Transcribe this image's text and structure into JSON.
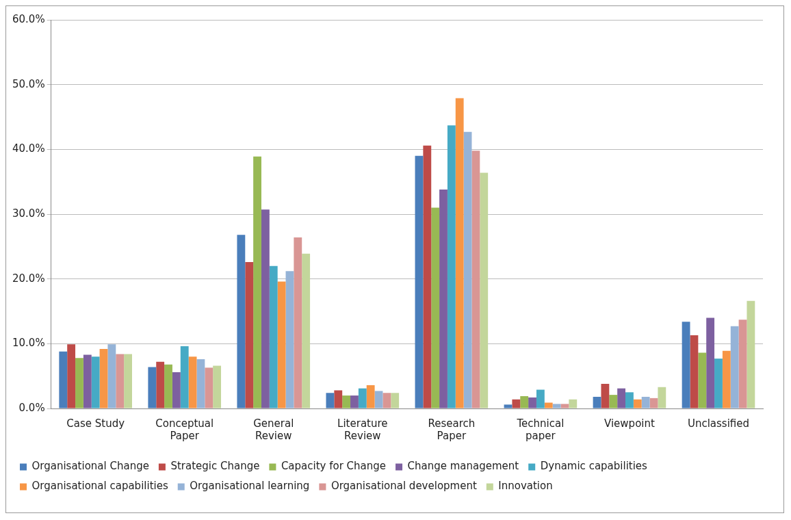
{
  "chart_data": {
    "type": "bar",
    "categories": [
      "Case Study",
      "Conceptual Paper",
      "General Review",
      "Literature Review",
      "Research Paper",
      "Technical paper",
      "Viewpoint",
      "Unclassified"
    ],
    "series": [
      {
        "name": "Organisational Change",
        "color": "#4a7ebb",
        "values": [
          8.8,
          6.4,
          26.8,
          2.4,
          39.0,
          0.6,
          1.8,
          13.4
        ]
      },
      {
        "name": "Strategic Change",
        "color": "#be4b48",
        "values": [
          9.9,
          7.2,
          22.6,
          2.8,
          40.6,
          1.4,
          3.8,
          11.3
        ]
      },
      {
        "name": "Capacity for Change",
        "color": "#98b954",
        "values": [
          7.8,
          6.8,
          38.9,
          2.0,
          31.0,
          1.9,
          2.1,
          8.6
        ]
      },
      {
        "name": "Change management",
        "color": "#7d60a0",
        "values": [
          8.3,
          5.6,
          30.7,
          2.0,
          33.8,
          1.7,
          3.1,
          14.0
        ]
      },
      {
        "name": "Dynamic capabilities",
        "color": "#46aac5",
        "values": [
          8.0,
          9.6,
          22.0,
          3.1,
          43.7,
          2.9,
          2.5,
          7.7
        ]
      },
      {
        "name": "Organisational capabilities",
        "color": "#f79646",
        "values": [
          9.2,
          8.0,
          19.6,
          3.6,
          47.9,
          0.9,
          1.4,
          8.9
        ]
      },
      {
        "name": "Organisational learning",
        "color": "#95b3d7",
        "values": [
          9.9,
          7.6,
          21.2,
          2.7,
          42.7,
          0.7,
          1.8,
          12.7
        ]
      },
      {
        "name": "Organisational development",
        "color": "#d99694",
        "values": [
          8.4,
          6.3,
          26.4,
          2.4,
          39.8,
          0.7,
          1.6,
          13.7
        ]
      },
      {
        "name": "Innovation",
        "color": "#c3d69b",
        "values": [
          8.4,
          6.6,
          23.9,
          2.4,
          36.4,
          1.4,
          3.3,
          16.6
        ]
      }
    ],
    "ylim": [
      0,
      60
    ],
    "yticks": [
      {
        "value": 0,
        "label": "0.0%"
      },
      {
        "value": 10,
        "label": "10.0%"
      },
      {
        "value": 20,
        "label": "20.0%"
      },
      {
        "value": 30,
        "label": "30.0%"
      },
      {
        "value": 40,
        "label": "40.0%"
      },
      {
        "value": 50,
        "label": "50.0%"
      },
      {
        "value": 60,
        "label": "60.0%"
      }
    ],
    "grid": "y",
    "legend": "bottom"
  }
}
